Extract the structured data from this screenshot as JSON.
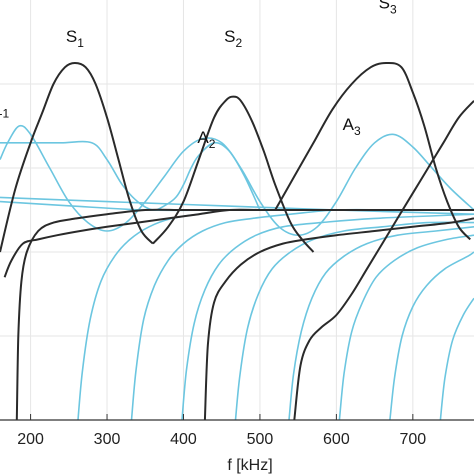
{
  "chart_data": {
    "type": "line",
    "xlabel": "f [kHz]",
    "ylabel": "",
    "xlim": [
      160,
      780
    ],
    "ylim": [
      0,
      1
    ],
    "x_ticks": [
      200,
      300,
      400,
      500,
      600,
      700
    ],
    "x_tick_labels": [
      "200",
      "300",
      "400",
      "500",
      "600",
      "700"
    ],
    "grid": true,
    "colors": {
      "symmetric": "#2a2a2a",
      "antisymmetric": "#6cc6e0"
    },
    "labels": [
      {
        "base": "S",
        "sub": "1",
        "x": 258,
        "y": 0.9,
        "color": "symmetric"
      },
      {
        "base": "S",
        "sub": "2",
        "x": 465,
        "y": 0.9,
        "color": "symmetric"
      },
      {
        "base": "S",
        "sub": "3",
        "x": 667,
        "y": 0.98,
        "color": "symmetric"
      },
      {
        "base": "A",
        "sub": "2",
        "x": 430,
        "y": 0.66,
        "color": "antisymmetric"
      },
      {
        "base": "A",
        "sub": "3",
        "x": 620,
        "y": 0.69,
        "color": "antisymmetric"
      },
      {
        "base": "",
        "sub": "-1",
        "x": 165,
        "y": 0.72,
        "color": "symmetric"
      }
    ],
    "series": [
      {
        "color": "symmetric",
        "x": [
          160,
          180,
          200,
          215,
          230,
          245,
          258,
          272,
          285,
          300,
          315,
          330,
          345,
          360
        ],
        "y": [
          0.4,
          0.55,
          0.66,
          0.73,
          0.8,
          0.84,
          0.85,
          0.84,
          0.8,
          0.72,
          0.62,
          0.52,
          0.45,
          0.42
        ]
      },
      {
        "color": "symmetric",
        "x": [
          360,
          380,
          400,
          420,
          440,
          455,
          465,
          475,
          490,
          505,
          520,
          540,
          555,
          570
        ],
        "y": [
          0.42,
          0.46,
          0.52,
          0.62,
          0.72,
          0.76,
          0.77,
          0.76,
          0.71,
          0.64,
          0.56,
          0.47,
          0.43,
          0.4
        ]
      },
      {
        "color": "symmetric",
        "x": [
          520,
          545,
          570,
          595,
          620,
          645,
          665,
          685,
          700,
          715,
          730,
          745,
          760,
          775
        ],
        "y": [
          0.5,
          0.58,
          0.66,
          0.74,
          0.8,
          0.84,
          0.85,
          0.84,
          0.78,
          0.7,
          0.6,
          0.52,
          0.46,
          0.43
        ]
      },
      {
        "color": "symmetric",
        "x": [
          182,
          184,
          188,
          195,
          210,
          230,
          260,
          300,
          350,
          400,
          460,
          520,
          580,
          640,
          700,
          760,
          780
        ],
        "y": [
          0.0,
          0.2,
          0.33,
          0.4,
          0.45,
          0.47,
          0.48,
          0.49,
          0.5,
          0.5,
          0.5,
          0.5,
          0.5,
          0.5,
          0.5,
          0.5,
          0.5
        ]
      },
      {
        "color": "symmetric",
        "x": [
          166,
          175,
          190,
          210,
          235,
          265,
          300,
          340,
          380,
          420,
          460,
          500,
          540,
          580,
          620,
          660,
          700,
          740,
          780
        ],
        "y": [
          0.34,
          0.38,
          0.42,
          0.43,
          0.44,
          0.45,
          0.46,
          0.47,
          0.48,
          0.49,
          0.5,
          0.5,
          0.5,
          0.5,
          0.5,
          0.5,
          0.5,
          0.5,
          0.5
        ]
      },
      {
        "color": "symmetric",
        "x": [
          428,
          432,
          440,
          455,
          475,
          500,
          530,
          560,
          600,
          650,
          700,
          750,
          780
        ],
        "y": [
          0.0,
          0.18,
          0.28,
          0.33,
          0.37,
          0.4,
          0.42,
          0.43,
          0.44,
          0.45,
          0.46,
          0.47,
          0.48
        ]
      },
      {
        "color": "symmetric",
        "x": [
          545,
          553,
          565,
          580,
          600,
          620,
          640,
          660,
          680,
          700,
          720,
          740,
          760,
          780
        ],
        "y": [
          0.0,
          0.13,
          0.19,
          0.22,
          0.25,
          0.3,
          0.36,
          0.42,
          0.48,
          0.54,
          0.6,
          0.66,
          0.72,
          0.76
        ]
      },
      {
        "color": "antisymmetric",
        "x": [
          160,
          200,
          240,
          280,
          300,
          320,
          340,
          360,
          375,
          390,
          400,
          410,
          420,
          440,
          460,
          480,
          500
        ],
        "y": [
          0.66,
          0.66,
          0.66,
          0.66,
          0.62,
          0.56,
          0.52,
          0.5,
          0.51,
          0.53,
          0.56,
          0.6,
          0.63,
          0.66,
          0.64,
          0.58,
          0.5
        ]
      },
      {
        "color": "antisymmetric",
        "x": [
          160,
          170,
          185,
          200,
          225,
          250,
          275,
          300,
          325,
          350,
          375,
          400,
          425,
          450,
          475,
          500,
          525,
          550,
          575,
          600,
          625,
          650,
          675,
          700,
          725,
          750,
          780
        ],
        "y": [
          0.62,
          0.66,
          0.7,
          0.68,
          0.6,
          0.52,
          0.47,
          0.45,
          0.47,
          0.52,
          0.58,
          0.64,
          0.67,
          0.66,
          0.6,
          0.52,
          0.46,
          0.44,
          0.46,
          0.52,
          0.6,
          0.66,
          0.68,
          0.65,
          0.6,
          0.55,
          0.5
        ]
      },
      {
        "color": "antisymmetric",
        "x": [
          160,
          250,
          350,
          450,
          550,
          650,
          780
        ],
        "y": [
          0.52,
          0.51,
          0.5,
          0.5,
          0.5,
          0.5,
          0.5
        ]
      },
      {
        "color": "antisymmetric",
        "x": [
          160,
          300,
          450,
          600,
          780
        ],
        "y": [
          0.53,
          0.52,
          0.51,
          0.5,
          0.49
        ]
      },
      {
        "color": "antisymmetric",
        "x": [
          262,
          268,
          278,
          292,
          310,
          330,
          355,
          385,
          420,
          460,
          520,
          600,
          700,
          780
        ],
        "y": [
          0.0,
          0.12,
          0.24,
          0.33,
          0.39,
          0.43,
          0.46,
          0.48,
          0.49,
          0.5,
          0.5,
          0.5,
          0.5,
          0.5
        ]
      },
      {
        "color": "antisymmetric",
        "x": [
          332,
          338,
          348,
          362,
          380,
          400,
          425,
          455,
          490,
          540,
          600,
          680,
          780
        ],
        "y": [
          0.0,
          0.12,
          0.24,
          0.32,
          0.38,
          0.42,
          0.45,
          0.47,
          0.48,
          0.49,
          0.5,
          0.5,
          0.5
        ]
      },
      {
        "color": "antisymmetric",
        "x": [
          398,
          404,
          414,
          428,
          446,
          468,
          495,
          530,
          580,
          650,
          780
        ],
        "y": [
          0.0,
          0.12,
          0.23,
          0.31,
          0.37,
          0.41,
          0.44,
          0.46,
          0.47,
          0.48,
          0.49
        ]
      },
      {
        "color": "antisymmetric",
        "x": [
          468,
          474,
          484,
          498,
          516,
          540,
          570,
          610,
          660,
          720,
          780
        ],
        "y": [
          0.0,
          0.11,
          0.22,
          0.3,
          0.36,
          0.4,
          0.43,
          0.45,
          0.46,
          0.47,
          0.47
        ]
      },
      {
        "color": "antisymmetric",
        "x": [
          538,
          544,
          554,
          568,
          586,
          610,
          640,
          680,
          730,
          780
        ],
        "y": [
          0.0,
          0.11,
          0.21,
          0.29,
          0.35,
          0.39,
          0.42,
          0.44,
          0.45,
          0.46
        ]
      },
      {
        "color": "antisymmetric",
        "x": [
          604,
          610,
          620,
          634,
          652,
          676,
          706,
          745,
          780
        ],
        "y": [
          0.0,
          0.11,
          0.21,
          0.28,
          0.34,
          0.38,
          0.41,
          0.43,
          0.44
        ]
      },
      {
        "color": "antisymmetric",
        "x": [
          670,
          676,
          686,
          700,
          718,
          742,
          772,
          780
        ],
        "y": [
          0.0,
          0.1,
          0.2,
          0.27,
          0.32,
          0.36,
          0.39,
          0.4
        ]
      },
      {
        "color": "antisymmetric",
        "x": [
          736,
          742,
          752,
          766,
          780
        ],
        "y": [
          0.0,
          0.1,
          0.19,
          0.25,
          0.29
        ]
      }
    ]
  }
}
